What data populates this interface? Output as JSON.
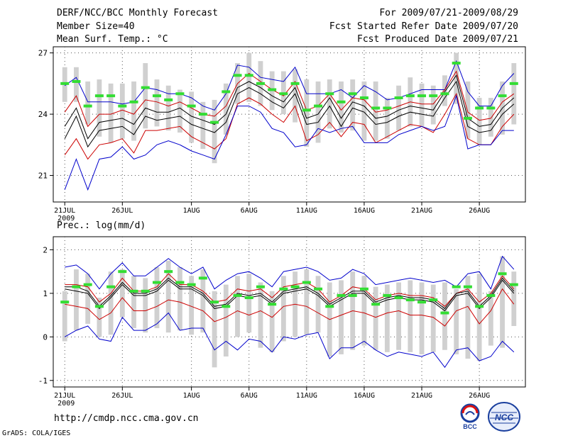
{
  "header": {
    "title": "DERF/NCC/BCC Monthly Forecast",
    "member_size": "Member Size=40",
    "variable": "Mean Surf. Temp.: °C",
    "period": "For 2009/07/21-2009/08/29",
    "started": "Fcst Started Refer Date 2009/07/20",
    "produced": "Fcst Produced Date 2009/07/21"
  },
  "footer": {
    "url": "http://cmdp.ncc.cma.gov.cn",
    "grads": "GrADS: COLA/IGES"
  },
  "logos": {
    "left": "BCC",
    "right": "NCC"
  },
  "colors": {
    "envelope": "#0000cc",
    "spread": "#cc0000",
    "mean": "#000000",
    "obs": "#33dd33",
    "bar": "#d0d0d0"
  },
  "chart_data": [
    {
      "type": "line",
      "title": "Mean Surf. Temp.: °C",
      "ylim": [
        19.7,
        27.3
      ],
      "yticks": [
        "21",
        "24",
        "27"
      ],
      "xlabels": [
        "21JUL",
        "26JUL",
        "1AUG",
        "6AUG",
        "11AUG",
        "16AUG",
        "21AUG",
        "26AUG"
      ],
      "xlabel_days": [
        0,
        5,
        11,
        16,
        21,
        26,
        31,
        36
      ],
      "year_label": "2009",
      "x": [
        0,
        1,
        2,
        3,
        4,
        5,
        6,
        7,
        8,
        9,
        10,
        11,
        12,
        13,
        14,
        15,
        16,
        17,
        18,
        19,
        20,
        21,
        22,
        23,
        24,
        25,
        26,
        27,
        28,
        29,
        30,
        31,
        32,
        33,
        34,
        35,
        36,
        37,
        38,
        39
      ],
      "series": [
        {
          "name": "max",
          "values": [
            25.4,
            25.8,
            24.6,
            24.6,
            24.6,
            24.5,
            24.6,
            25.3,
            25.2,
            25,
            25,
            24.8,
            24.4,
            24.2,
            25,
            26.4,
            26.3,
            25.8,
            25.7,
            25.6,
            26.3,
            25,
            25,
            25,
            25.2,
            24.8,
            25.4,
            25.1,
            24.7,
            24.8,
            25,
            25.2,
            25.2,
            25.2,
            26.6,
            25.1,
            24.4,
            24.4,
            25.4,
            26
          ]
        },
        {
          "name": "upper",
          "values": [
            24.1,
            24.9,
            23.4,
            24,
            24,
            24.2,
            24,
            24.7,
            24.6,
            24.4,
            24.6,
            24.3,
            24,
            23.9,
            24.4,
            25.5,
            26,
            25.6,
            25.2,
            24.9,
            25.6,
            24.2,
            24.4,
            25,
            24.2,
            24.8,
            24.7,
            24.1,
            24.2,
            24.4,
            24.6,
            24.5,
            24.5,
            25.2,
            26.1,
            24.1,
            23.7,
            23.8,
            24.6,
            25
          ]
        },
        {
          "name": "mean",
          "values": [
            23.4,
            24.3,
            22.8,
            23.6,
            23.7,
            23.8,
            23.5,
            24.3,
            24.1,
            24.1,
            24.3,
            23.9,
            23.7,
            23.5,
            24,
            25.3,
            25.6,
            25.3,
            24.9,
            24.6,
            25.3,
            23.8,
            24,
            24.8,
            23.8,
            24.6,
            24.4,
            23.8,
            23.9,
            24.2,
            24.4,
            24.3,
            24.2,
            25.1,
            25.9,
            23.8,
            23.4,
            23.5,
            24.3,
            24.8
          ]
        },
        {
          "name": "lower",
          "values": [
            22.8,
            23.9,
            22.4,
            23.2,
            23.3,
            23.4,
            23,
            23.9,
            23.7,
            23.8,
            23.9,
            23.5,
            23.3,
            23.1,
            23.6,
            25,
            25.3,
            25,
            24.6,
            24.3,
            25,
            23.5,
            23.6,
            24.4,
            23.4,
            24.3,
            24.1,
            23.5,
            23.6,
            23.9,
            24.1,
            24,
            23.9,
            24.8,
            25.6,
            23.4,
            23.1,
            23.2,
            24,
            24.5
          ]
        },
        {
          "name": "lowest",
          "values": [
            22,
            22.8,
            21.8,
            22.5,
            22.6,
            22.8,
            22.1,
            23.2,
            23.2,
            23.3,
            23.4,
            22.9,
            22.6,
            22.3,
            22.8,
            24.5,
            24.8,
            24.5,
            24,
            23.6,
            24.4,
            22.7,
            23,
            23.6,
            22.9,
            23.6,
            23.5,
            22.6,
            22.9,
            23.2,
            23.5,
            23.4,
            23.1,
            24,
            25,
            22.8,
            22.5,
            22.5,
            23.4,
            24
          ]
        },
        {
          "name": "min",
          "values": [
            20.3,
            21.8,
            20.3,
            21.8,
            21.9,
            22.4,
            21.8,
            22,
            22.5,
            22.7,
            22.5,
            22.2,
            22,
            21.8,
            23,
            24.4,
            24.4,
            24.1,
            23.3,
            23.1,
            22.4,
            22.5,
            23.3,
            23.1,
            23.3,
            23.4,
            22.6,
            22.6,
            22.6,
            23,
            23.2,
            23.4,
            23.2,
            23.4,
            24.9,
            22.3,
            22.5,
            22.5,
            23.2,
            23.2
          ]
        }
      ],
      "bars": {
        "low": [
          24.6,
          24.6,
          23.5,
          22.9,
          22.6,
          22.8,
          22.7,
          23.3,
          23.4,
          23.2,
          23.1,
          22.6,
          22.3,
          21.6,
          23,
          24.5,
          24.6,
          24.4,
          24.2,
          24,
          23.6,
          22.4,
          22.6,
          23.3,
          23.1,
          23.2,
          22.7,
          22.7,
          22.8,
          23.2,
          23.4,
          23.4,
          23.5,
          24.4,
          24.5,
          22.8,
          22.5,
          22.9,
          23,
          23.5
        ],
        "high": [
          26.3,
          26.3,
          25.6,
          25.7,
          25.5,
          25.5,
          25.6,
          26.5,
          25.7,
          25.4,
          25.2,
          25.1,
          24.6,
          24.7,
          25.5,
          26.5,
          27,
          26.6,
          26.1,
          26.1,
          26.2,
          25.7,
          25.6,
          25.7,
          25.6,
          25.7,
          25.6,
          25.6,
          24.8,
          25.4,
          25.8,
          25.5,
          25.4,
          25.9,
          27,
          25.6,
          24.8,
          24.8,
          25.6,
          26.5
        ]
      },
      "observed": [
        25.5,
        25.6,
        24.4,
        24.9,
        24.9,
        24.4,
        24.6,
        25.3,
        24.9,
        24.7,
        25,
        24.4,
        24,
        23.6,
        25.1,
        25.9,
        25.9,
        25.5,
        25.2,
        25,
        25.5,
        24.2,
        24.4,
        25,
        24.6,
        25,
        24.8,
        24.3,
        24.3,
        24.8,
        24.9,
        24.9,
        24.9,
        25,
        26.5,
        23.8,
        24.3,
        24.3,
        24.9,
        25.5
      ]
    },
    {
      "type": "line",
      "title": "Prec.: log(mm/d)",
      "ylim": [
        -1.15,
        2.3
      ],
      "yticks": [
        "-1",
        "0",
        "1",
        "2"
      ],
      "xlabels": [
        "21JUL",
        "26JUL",
        "1AUG",
        "6AUG",
        "11AUG",
        "16AUG",
        "21AUG",
        "26AUG"
      ],
      "xlabel_days": [
        0,
        5,
        11,
        16,
        21,
        26,
        31,
        36
      ],
      "year_label": "2009",
      "x": [
        0,
        1,
        2,
        3,
        4,
        5,
        6,
        7,
        8,
        9,
        10,
        11,
        12,
        13,
        14,
        15,
        16,
        17,
        18,
        19,
        20,
        21,
        22,
        23,
        24,
        25,
        26,
        27,
        28,
        29,
        30,
        31,
        32,
        33,
        34,
        35,
        36,
        37,
        38,
        39
      ],
      "series": [
        {
          "name": "max",
          "values": [
            1.6,
            1.65,
            1.45,
            1.1,
            1.45,
            1.7,
            1.4,
            1.4,
            1.6,
            1.8,
            1.6,
            1.45,
            1.6,
            1.1,
            1.3,
            1.45,
            1.5,
            1.35,
            1.15,
            1.5,
            1.55,
            1.6,
            1.5,
            1.3,
            1.35,
            1.55,
            1.45,
            1.2,
            1.25,
            1.3,
            1.35,
            1.3,
            1.25,
            1.3,
            1.15,
            1.45,
            1.5,
            1.1,
            1.85,
            1.55
          ]
        },
        {
          "name": "upper",
          "values": [
            1.2,
            1.2,
            1.15,
            0.8,
            1,
            1.35,
            1.05,
            1.05,
            1.15,
            1.45,
            1.2,
            1.2,
            1.05,
            0.8,
            0.85,
            1.1,
            1.05,
            1.1,
            0.9,
            1.15,
            1.2,
            1.25,
            1.1,
            0.8,
            0.95,
            1.15,
            1.1,
            0.85,
            0.95,
            1,
            0.95,
            0.95,
            0.9,
            0.7,
            1,
            1.1,
            0.8,
            1,
            1.4,
            1.1
          ]
        },
        {
          "name": "mean",
          "values": [
            1.15,
            1.15,
            1.05,
            0.7,
            0.95,
            1.25,
            1,
            1,
            1.1,
            1.35,
            1.15,
            1.15,
            1,
            0.7,
            0.75,
            1,
            0.95,
            1,
            0.8,
            1.05,
            1.1,
            1.15,
            1,
            0.75,
            0.9,
            1.05,
            1.05,
            0.8,
            0.9,
            0.95,
            0.9,
            0.9,
            0.85,
            0.65,
            1,
            1.05,
            0.7,
            0.95,
            1.35,
            1.05
          ]
        },
        {
          "name": "lower",
          "values": [
            1.1,
            1.05,
            1,
            0.65,
            0.9,
            1.2,
            0.95,
            0.95,
            1.05,
            1.3,
            1.1,
            1.1,
            0.95,
            0.65,
            0.7,
            0.95,
            0.9,
            0.95,
            0.75,
            1,
            1.05,
            1.1,
            0.95,
            0.7,
            0.85,
            1,
            1,
            0.75,
            0.85,
            0.9,
            0.85,
            0.85,
            0.8,
            0.6,
            0.95,
            1,
            0.65,
            0.9,
            1.3,
            1
          ]
        },
        {
          "name": "lowest",
          "values": [
            0.75,
            0.7,
            0.65,
            0.4,
            0.55,
            0.9,
            0.6,
            0.6,
            0.7,
            0.85,
            0.8,
            0.7,
            0.6,
            0.35,
            0.45,
            0.6,
            0.5,
            0.6,
            0.45,
            0.7,
            0.75,
            0.7,
            0.55,
            0.4,
            0.5,
            0.6,
            0.55,
            0.45,
            0.55,
            0.6,
            0.5,
            0.5,
            0.45,
            0.25,
            0.6,
            0.7,
            0.3,
            0.6,
            1.1,
            0.75
          ]
        },
        {
          "name": "min",
          "values": [
            0,
            0.15,
            0.25,
            -0.05,
            -0.1,
            0.45,
            0.15,
            0.15,
            0.3,
            0.55,
            0.15,
            0.2,
            0.2,
            -0.3,
            -0.1,
            -0.3,
            -0.05,
            -0.1,
            -0.35,
            0,
            -0.05,
            0.05,
            0.1,
            -0.5,
            -0.25,
            -0.25,
            -0.1,
            -0.3,
            -0.45,
            -0.35,
            -0.4,
            -0.45,
            -0.35,
            -0.7,
            -0.3,
            -0.25,
            -0.55,
            -0.45,
            -0.1,
            -0.35
          ]
        }
      ],
      "bars": {
        "low": [
          -0.1,
          0.15,
          0.3,
          0,
          0.05,
          0.45,
          0.2,
          0.1,
          0.2,
          0.1,
          0.15,
          0.05,
          0.1,
          -0.7,
          -0.45,
          0,
          0.1,
          -0.25,
          -0.35,
          -0.1,
          0,
          0.05,
          0.1,
          -0.45,
          -0.4,
          -0.3,
          -0.2,
          -0.3,
          -0.35,
          -0.3,
          -0.35,
          -0.4,
          -0.35,
          -0.3,
          -0.4,
          -0.5,
          -0.55,
          -0.2,
          -0.25,
          0.25
        ],
        "high": [
          1.05,
          1.55,
          1.45,
          0.9,
          1.5,
          1.55,
          1.4,
          1.35,
          1.6,
          1.75,
          1.6,
          1.4,
          1.55,
          1.05,
          1.2,
          1.4,
          1.45,
          1.25,
          1.05,
          1.4,
          1.5,
          1.55,
          1.4,
          1.25,
          1.3,
          1.5,
          1.4,
          1.15,
          1.2,
          1.25,
          1.3,
          1.25,
          1.2,
          1.25,
          1.1,
          1.4,
          1.45,
          1.05,
          1.85,
          1.5
        ]
      },
      "observed": [
        0.8,
        1.15,
        1.2,
        0.7,
        1.15,
        1.5,
        1.05,
        1.05,
        1.25,
        1.5,
        1.25,
        1.2,
        1.35,
        0.8,
        0.7,
        0.95,
        0.9,
        1.15,
        0.75,
        1.1,
        1.15,
        1.25,
        1.1,
        0.7,
        0.95,
        0.95,
        1.1,
        0.75,
        0.95,
        0.9,
        0.85,
        0.8,
        0.85,
        0.55,
        1.15,
        1.15,
        0.7,
        0.95,
        1.45,
        1.2
      ]
    }
  ]
}
